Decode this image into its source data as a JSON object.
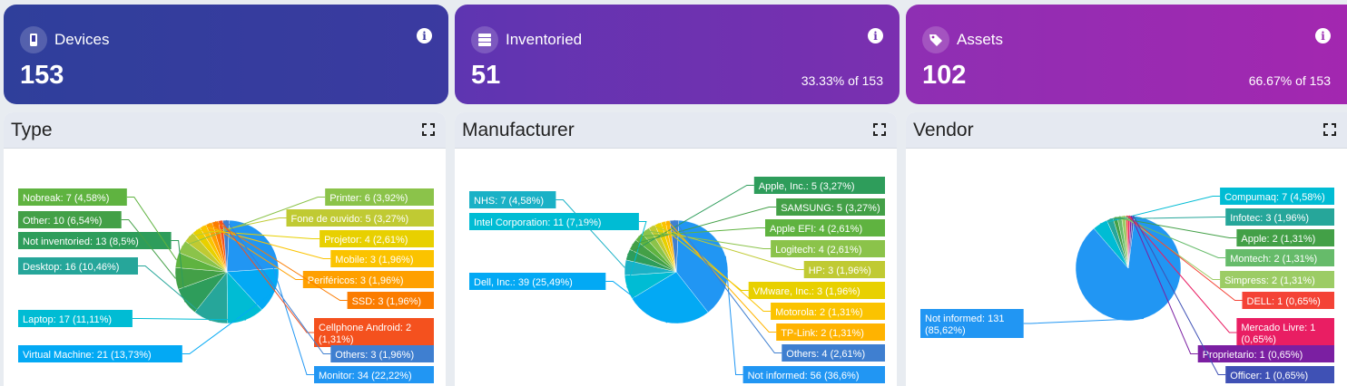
{
  "cards": [
    {
      "title": "Devices",
      "value": "153",
      "subtitle": "",
      "icon": "phone-icon",
      "gradient": [
        "#2f3f9b",
        "#3b3aa0"
      ]
    },
    {
      "title": "Inventoried",
      "value": "51",
      "subtitle": "33.33% of 153",
      "icon": "server-icon",
      "gradient": [
        "#5e35b1",
        "#7b2fb0"
      ]
    },
    {
      "title": "Assets",
      "value": "102",
      "subtitle": "66.67% of 153",
      "icon": "tag-icon",
      "gradient": [
        "#8e2fb3",
        "#a327b0"
      ]
    }
  ],
  "chart_data": [
    {
      "type": "pie",
      "title": "Type",
      "slices": [
        {
          "label": "Monitor",
          "value": 34,
          "text": "Monitor: 34 (22,22%)",
          "color": "#2196f3"
        },
        {
          "label": "Virtual Machine",
          "value": 21,
          "text": "Virtual Machine: 21 (13,73%)",
          "color": "#03a9f4"
        },
        {
          "label": "Laptop",
          "value": 17,
          "text": "Laptop: 17 (11,11%)",
          "color": "#00bcd4"
        },
        {
          "label": "Desktop",
          "value": 16,
          "text": "Desktop: 16 (10,46%)",
          "color": "#26a69a"
        },
        {
          "label": "Not inventoried",
          "value": 13,
          "text": "Not inventoried: 13 (8,5%)",
          "color": "#2e9d5b"
        },
        {
          "label": "Other",
          "value": 10,
          "text": "Other: 10 (6,54%)",
          "color": "#43a047"
        },
        {
          "label": "Nobreak",
          "value": 7,
          "text": "Nobreak: 7 (4,58%)",
          "color": "#5fb340"
        },
        {
          "label": "Printer",
          "value": 6,
          "text": "Printer: 6 (3,92%)",
          "color": "#8bc34a"
        },
        {
          "label": "Fone de ouvido",
          "value": 5,
          "text": "Fone de ouvido: 5 (3,27%)",
          "color": "#c0ca33"
        },
        {
          "label": "Projetor",
          "value": 4,
          "text": "Projetor: 4 (2,61%)",
          "color": "#e8d000"
        },
        {
          "label": "Mobile",
          "value": 3,
          "text": "Mobile: 3 (1,96%)",
          "color": "#fbc300"
        },
        {
          "label": "Periféricos",
          "value": 3,
          "text": "Periféricos: 3 (1,96%)",
          "color": "#ffa000"
        },
        {
          "label": "SSD",
          "value": 3,
          "text": "SSD: 3 (1,96%)",
          "color": "#fb7c00"
        },
        {
          "label": "Cellphone Android",
          "value": 2,
          "text": "Cellphone Android: 2 (1,31%)",
          "color": "#f4511e"
        },
        {
          "label": "Others",
          "value": 3,
          "text": "Others: 3 (1,96%)",
          "color": "#3f7fd0"
        }
      ]
    },
    {
      "type": "pie",
      "title": "Manufacturer",
      "slices": [
        {
          "label": "Not informed",
          "value": 56,
          "text": "Not informed: 56 (36,6%)",
          "color": "#2196f3"
        },
        {
          "label": "Dell, Inc.",
          "value": 39,
          "text": "Dell, Inc.: 39 (25,49%)",
          "color": "#03a9f4"
        },
        {
          "label": "Intel Corporation",
          "value": 11,
          "text": "Intel Corporation: 11 (7,19%)",
          "color": "#00bcd4"
        },
        {
          "label": "NHS",
          "value": 7,
          "text": "NHS: 7 (4,58%)",
          "color": "#1ab1c6"
        },
        {
          "label": "Apple, Inc.",
          "value": 5,
          "text": "Apple, Inc.: 5 (3,27%)",
          "color": "#2e9d5b"
        },
        {
          "label": "SAMSUNG",
          "value": 5,
          "text": "SAMSUNG: 5 (3,27%)",
          "color": "#43a047"
        },
        {
          "label": "Apple EFI",
          "value": 4,
          "text": "Apple EFI: 4 (2,61%)",
          "color": "#5fb340"
        },
        {
          "label": "Logitech",
          "value": 4,
          "text": "Logitech: 4 (2,61%)",
          "color": "#8bc34a"
        },
        {
          "label": "HP",
          "value": 3,
          "text": "HP: 3 (1,96%)",
          "color": "#c0ca33"
        },
        {
          "label": "VMware, Inc.",
          "value": 3,
          "text": "VMware, Inc.: 3 (1,96%)",
          "color": "#e8d000"
        },
        {
          "label": "Motorola",
          "value": 2,
          "text": "Motorola: 2 (1,31%)",
          "color": "#fbc300"
        },
        {
          "label": "TP-Link",
          "value": 2,
          "text": "TP-Link: 2 (1,31%)",
          "color": "#ffb300"
        },
        {
          "label": "Others",
          "value": 4,
          "text": "Others: 4 (2,61%)",
          "color": "#3f7fd0"
        }
      ]
    },
    {
      "type": "pie",
      "title": "Vendor",
      "slices": [
        {
          "label": "Not informed",
          "value": 131,
          "text": "Not informed: 131 (85,62%)",
          "color": "#2196f3"
        },
        {
          "label": "Compumaq",
          "value": 7,
          "text": "Compumaq: 7 (4,58%)",
          "color": "#00bcd4"
        },
        {
          "label": "Infotec",
          "value": 3,
          "text": "Infotec: 3 (1,96%)",
          "color": "#26a69a"
        },
        {
          "label": "Apple",
          "value": 2,
          "text": "Apple: 2 (1,31%)",
          "color": "#43a047"
        },
        {
          "label": "Montech",
          "value": 2,
          "text": "Montech: 2 (1,31%)",
          "color": "#66bb6a"
        },
        {
          "label": "Simpress",
          "value": 2,
          "text": "Simpress: 2 (1,31%)",
          "color": "#9ccc65"
        },
        {
          "label": "DELL",
          "value": 1,
          "text": "DELL: 1 (0,65%)",
          "color": "#f44336"
        },
        {
          "label": "Mercado Livre",
          "value": 1,
          "text": "Mercado Livre: 1 (0,65%)",
          "color": "#e91e63"
        },
        {
          "label": "Proprietario",
          "value": 1,
          "text": "Proprietario: 1 (0,65%)",
          "color": "#7b1fa2"
        },
        {
          "label": "Officer",
          "value": 1,
          "text": "Officer: 1 (0,65%)",
          "color": "#3f51b5"
        }
      ]
    }
  ]
}
